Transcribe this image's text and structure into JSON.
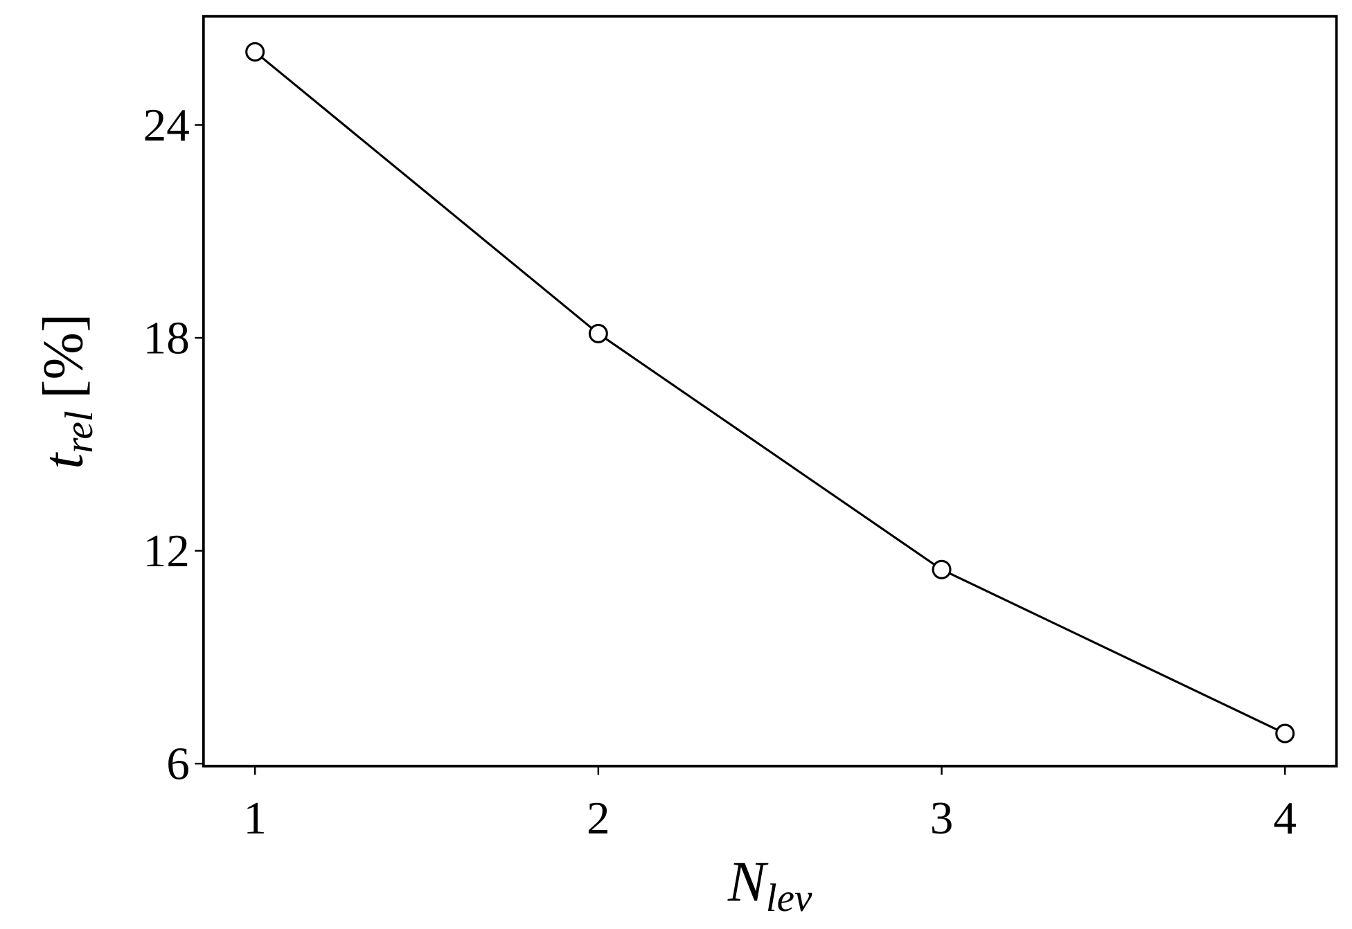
{
  "chart_data": {
    "type": "line",
    "x_label": "N",
    "x_label_sub": "lev",
    "y_label": "t",
    "y_label_sub": "rel",
    "y_label_unit": "[%]",
    "x": [
      1,
      2,
      3,
      4
    ],
    "series": [
      {
        "color": "#000000",
        "values": [
          26.06,
          18.12,
          11.47,
          6.85
        ]
      }
    ],
    "xlim": [
      0.85,
      4.15
    ],
    "xticks": [
      1,
      2,
      3,
      4
    ],
    "ylim": [
      5.93,
      27.06
    ],
    "yticks": [
      6,
      12,
      18,
      24
    ],
    "grid": false,
    "marker": "open-circle"
  }
}
